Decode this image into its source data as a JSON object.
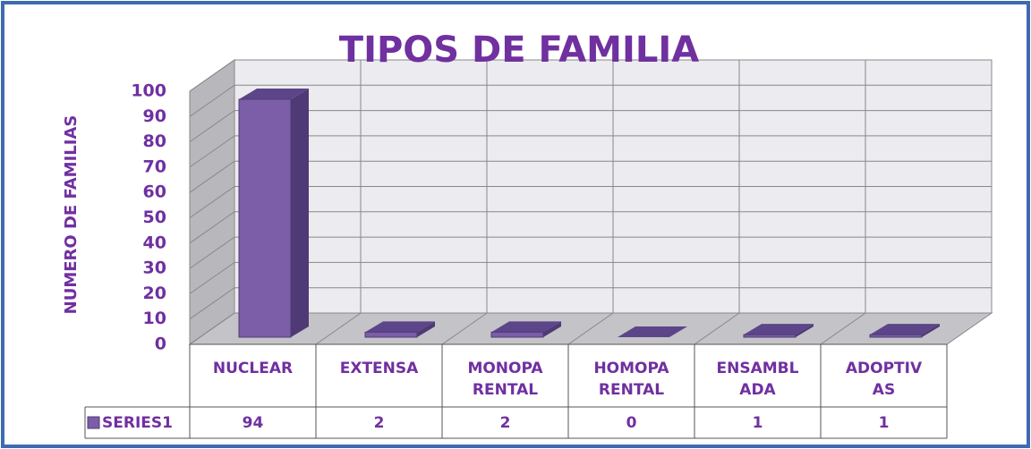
{
  "chart_data": {
    "type": "bar3d",
    "title": "TIPOS DE FAMILIA",
    "y_label": "NUMERO DE FAMILIAS",
    "categories": [
      "NUCLEAR",
      "EXTENSA",
      "MONOPA RENTAL",
      "HOMOPA RENTAL",
      "ENSAMBL ADA",
      "ADOPTIV AS"
    ],
    "series": [
      {
        "name": "SERIES1",
        "color": "#7b5ea7",
        "values": [
          94,
          2,
          2,
          0,
          1,
          1
        ]
      }
    ],
    "ylim": [
      0,
      100
    ],
    "yticks": [
      0,
      10,
      20,
      30,
      40,
      50,
      60,
      70,
      80,
      90,
      100
    ],
    "grid": true,
    "data_table": true
  }
}
